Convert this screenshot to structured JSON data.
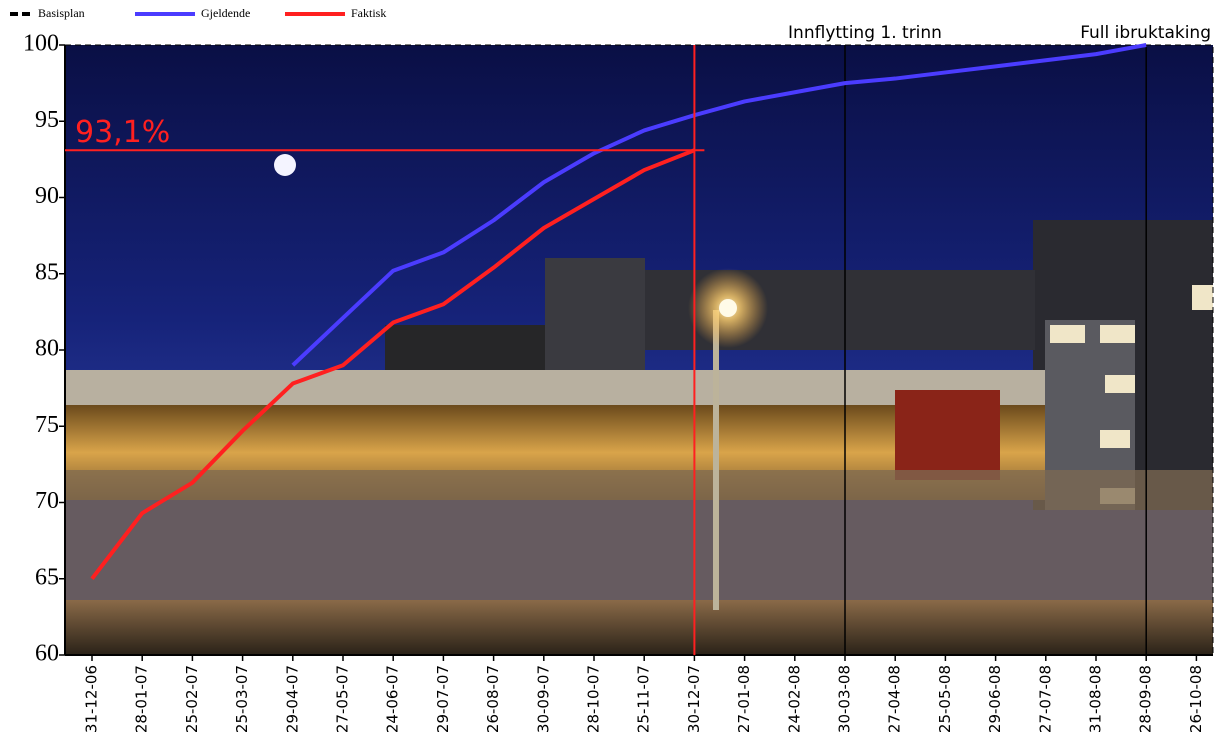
{
  "chart_data": {
    "type": "line",
    "categories": [
      "31-12-06",
      "28-01-07",
      "25-02-07",
      "25-03-07",
      "29-04-07",
      "27-05-07",
      "24-06-07",
      "29-07-07",
      "26-08-07",
      "30-09-07",
      "28-10-07",
      "25-11-07",
      "30-12-07",
      "27-01-08",
      "24-02-08",
      "30-03-08",
      "27-04-08",
      "25-05-08",
      "29-06-08",
      "27-07-08",
      "31-08-08",
      "28-09-08",
      "26-10-08"
    ],
    "series": [
      {
        "name": "Basisplan",
        "color": "#000000",
        "dashed": true,
        "values": [
          null,
          null,
          null,
          null,
          79,
          82.1,
          85.2,
          86.4,
          88.5,
          91,
          92.9,
          94.4,
          95.4,
          96.3,
          96.9,
          97.5,
          97.8,
          98.2,
          98.6,
          99,
          99.4,
          100,
          null
        ]
      },
      {
        "name": "Gjeldende",
        "color": "#4b3cff",
        "values": [
          null,
          null,
          null,
          null,
          79,
          82.1,
          85.2,
          86.4,
          88.5,
          91,
          92.9,
          94.4,
          95.4,
          96.3,
          96.9,
          97.5,
          97.8,
          98.2,
          98.6,
          99,
          99.4,
          100,
          null
        ]
      },
      {
        "name": "Faktisk",
        "color": "#ff2020",
        "values": [
          65,
          69.3,
          71.3,
          74.7,
          77.8,
          79,
          81.8,
          83,
          85.4,
          88,
          89.9,
          91.8,
          93.1,
          null,
          null,
          null,
          null,
          null,
          null,
          null,
          null,
          null,
          null
        ]
      }
    ],
    "ylim": [
      60,
      100
    ],
    "yticks": [
      60,
      65,
      70,
      75,
      80,
      85,
      90,
      95,
      100
    ],
    "highlight": {
      "label": "93,1%",
      "value": 93.1,
      "category": 12
    },
    "markers": [
      {
        "label": "Innflytting 1. trinn",
        "category": 15
      },
      {
        "label": "Full ibruktaking",
        "category": 21
      }
    ]
  }
}
